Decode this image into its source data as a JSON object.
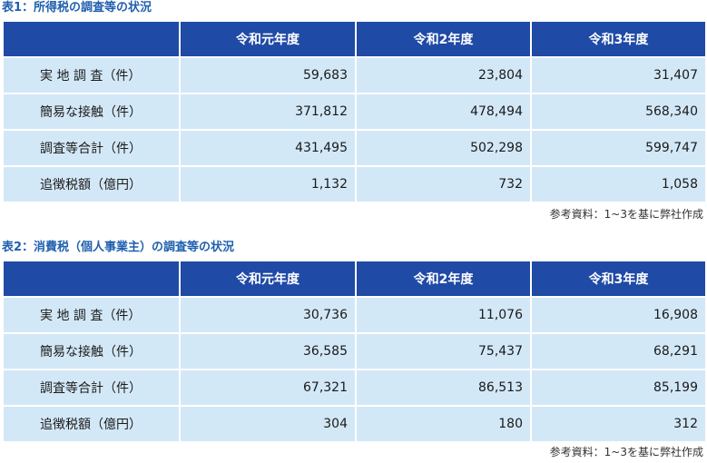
{
  "tables": [
    {
      "title": "表1：所得税の調査等の状況",
      "columns": [
        "",
        "令和元年度",
        "令和2年度",
        "令和3年度"
      ],
      "rows": [
        {
          "label": "実 地 調 査（件）",
          "values": [
            "59,683",
            "23,804",
            "31,407"
          ]
        },
        {
          "label": "簡易な接触（件）",
          "values": [
            "371,812",
            "478,494",
            "568,340"
          ]
        },
        {
          "label": "調査等合計（件）",
          "values": [
            "431,495",
            "502,298",
            "599,747"
          ]
        },
        {
          "label": "追徴税額（億円）",
          "values": [
            "1,132",
            "732",
            "1,058"
          ]
        }
      ],
      "source": "参考資料：1~3を基に弊社作成"
    },
    {
      "title": "表2：消費税（個人事業主）の調査等の状況",
      "columns": [
        "",
        "令和元年度",
        "令和2年度",
        "令和3年度"
      ],
      "rows": [
        {
          "label": "実 地 調 査（件）",
          "values": [
            "30,736",
            "11,076",
            "16,908"
          ]
        },
        {
          "label": "簡易な接触（件）",
          "values": [
            "36,585",
            "75,437",
            "68,291"
          ]
        },
        {
          "label": "調査等合計（件）",
          "values": [
            "67,321",
            "86,513",
            "85,199"
          ]
        },
        {
          "label": "追徴税額（億円）",
          "values": [
            "304",
            "180",
            "312"
          ]
        }
      ],
      "source": "参考資料：1~3を基に弊社作成"
    }
  ],
  "colors": {
    "header_bg": "#1f4aa6",
    "cell_bg": "#d3e8f7",
    "title_text": "#1f5fae"
  }
}
